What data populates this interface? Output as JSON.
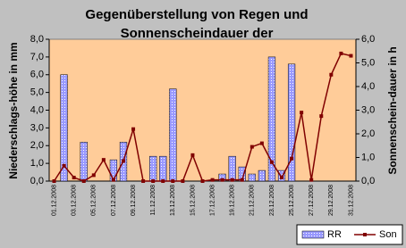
{
  "chart_data": {
    "type": "bar",
    "title": [
      "Gegenüberstellung von Regen und",
      "Sonnenscheindauer der"
    ],
    "y_label": "Niederschlags-höhe in mm",
    "y2_label": "Sonnenschein-dauer in h",
    "categories": [
      "01.12.2008",
      null,
      "03.12.2008",
      null,
      "05.12.2008",
      null,
      "07.12.2008",
      null,
      "09.12.2008",
      null,
      "11.12.2008",
      null,
      "13.12.2008",
      null,
      "15.12.2008",
      null,
      "17.12.2008",
      null,
      "19.12.2008",
      null,
      "21.12.2008",
      null,
      "23.12.2008",
      null,
      "25.12.2008",
      null,
      "27.12.2008",
      null,
      "29.12.2008",
      null,
      "31.12.2008"
    ],
    "series": [
      {
        "name": "RR",
        "color": "#9999ff",
        "type": "bar",
        "values": [
          0,
          6.0,
          0,
          2.2,
          0,
          0,
          1.2,
          2.2,
          0,
          0,
          1.4,
          1.4,
          5.2,
          0,
          0,
          0,
          0,
          0.4,
          1.4,
          0.8,
          0.4,
          0.6,
          7.0,
          0.6,
          6.6,
          0,
          0,
          0,
          0,
          0,
          0
        ]
      },
      {
        "name": "Son",
        "color": "#800000",
        "type": "line",
        "axis": "y2",
        "values": [
          0,
          0.65,
          0.15,
          0,
          0.25,
          0.9,
          0.05,
          0.85,
          2.2,
          0,
          0,
          0,
          0,
          0,
          1.1,
          0,
          0.05,
          0.05,
          0.05,
          0.05,
          1.45,
          1.6,
          0.8,
          0.15,
          0.95,
          2.9,
          0.05,
          2.75,
          4.5,
          5.4,
          5.3
        ]
      }
    ],
    "ylim": [
      0,
      8
    ],
    "yticks": [
      {
        "value": 0,
        "label": "0,0"
      },
      {
        "value": 1,
        "label": "1,0"
      },
      {
        "value": 2,
        "label": "2,0"
      },
      {
        "value": 3,
        "label": "3,0"
      },
      {
        "value": 4,
        "label": "4,0"
      },
      {
        "value": 5,
        "label": "5,0"
      },
      {
        "value": 6,
        "label": "6,0"
      },
      {
        "value": 7,
        "label": "7,0"
      },
      {
        "value": 8,
        "label": "8,0"
      }
    ],
    "y2lim": [
      0,
      6
    ],
    "y2ticks": [
      {
        "value": 0,
        "label": "0,0"
      },
      {
        "value": 1,
        "label": "1,0"
      },
      {
        "value": 2,
        "label": "2,0"
      },
      {
        "value": 3,
        "label": "3,0"
      },
      {
        "value": 4,
        "label": "4,0"
      },
      {
        "value": 5,
        "label": "5,0"
      },
      {
        "value": 6,
        "label": "6,0"
      }
    ],
    "legend": "bottom-right",
    "plot_background": "#ffcc99"
  }
}
